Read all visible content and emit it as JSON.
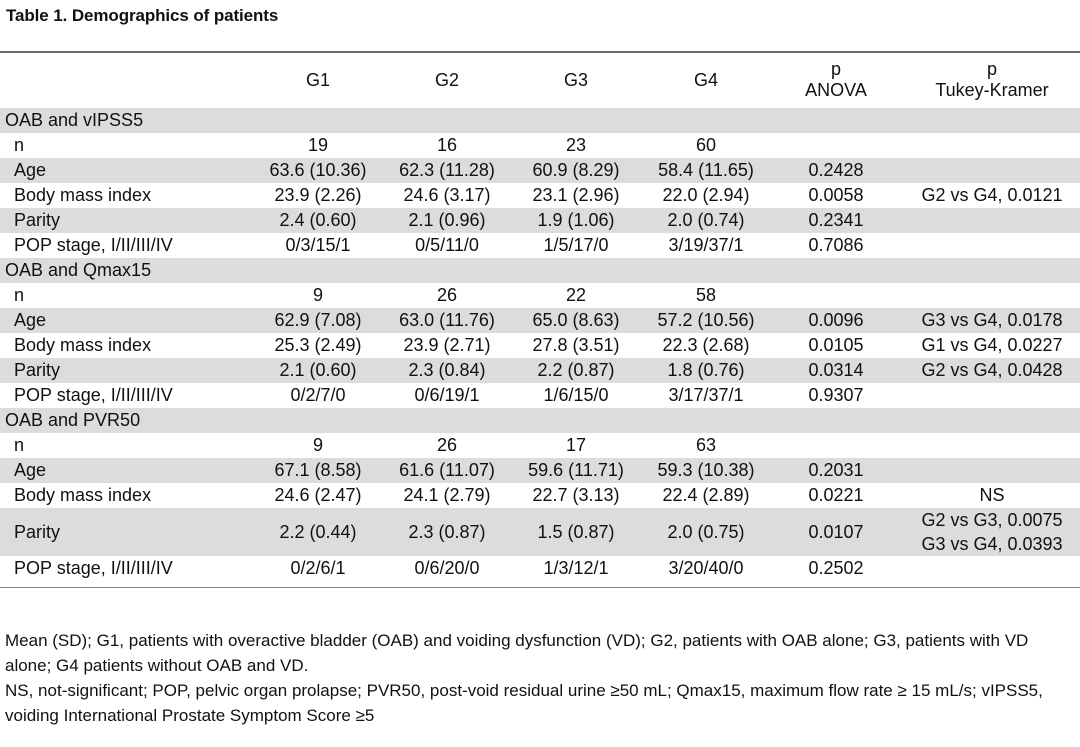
{
  "title": "Table 1. Demographics of patients",
  "header": {
    "g1": "G1",
    "g2": "G2",
    "g3": "G3",
    "g4": "G4",
    "p_line1": "p",
    "p_line2": "ANOVA",
    "tk_line1": "p",
    "tk_line2": "Tukey-Kramer"
  },
  "sections": [
    {
      "label": "OAB and vIPSS5",
      "rows": [
        {
          "label": "n",
          "g1": "19",
          "g2": "16",
          "g3": "23",
          "g4": "60",
          "p": "",
          "tk": ""
        },
        {
          "label": "Age",
          "g1": "63.6 (10.36)",
          "g2": "62.3 (11.28)",
          "g3": "60.9 (8.29)",
          "g4": "58.4 (11.65)",
          "p": "0.2428",
          "tk": ""
        },
        {
          "label": "Body mass index",
          "g1": "23.9 (2.26)",
          "g2": "24.6 (3.17)",
          "g3": "23.1 (2.96)",
          "g4": "22.0 (2.94)",
          "p": "0.0058",
          "tk": "G2 vs G4, 0.0121"
        },
        {
          "label": "Parity",
          "g1": "2.4 (0.60)",
          "g2": "2.1 (0.96)",
          "g3": "1.9 (1.06)",
          "g4": "2.0 (0.74)",
          "p": "0.2341",
          "tk": ""
        },
        {
          "label": "POP stage, I/II/III/IV",
          "g1": "0/3/15/1",
          "g2": "0/5/11/0",
          "g3": "1/5/17/0",
          "g4": "3/19/37/1",
          "p": "0.7086",
          "tk": ""
        }
      ]
    },
    {
      "label": "OAB and Qmax15",
      "rows": [
        {
          "label": "n",
          "g1": "9",
          "g2": "26",
          "g3": "22",
          "g4": "58",
          "p": "",
          "tk": ""
        },
        {
          "label": "Age",
          "g1": "62.9 (7.08)",
          "g2": "63.0 (11.76)",
          "g3": "65.0 (8.63)",
          "g4": "57.2 (10.56)",
          "p": "0.0096",
          "tk": "G3 vs G4, 0.0178"
        },
        {
          "label": "Body mass index",
          "g1": "25.3 (2.49)",
          "g2": "23.9 (2.71)",
          "g3": "27.8 (3.51)",
          "g4": "22.3 (2.68)",
          "p": "0.0105",
          "tk": "G1 vs G4, 0.0227"
        },
        {
          "label": "Parity",
          "g1": "2.1 (0.60)",
          "g2": "2.3 (0.84)",
          "g3": "2.2 (0.87)",
          "g4": "1.8 (0.76)",
          "p": "0.0314",
          "tk": "G2 vs G4, 0.0428"
        },
        {
          "label": "POP stage, I/II/III/IV",
          "g1": "0/2/7/0",
          "g2": "0/6/19/1",
          "g3": "1/6/15/0",
          "g4": "3/17/37/1",
          "p": "0.9307",
          "tk": ""
        }
      ]
    },
    {
      "label": "OAB and PVR50",
      "rows": [
        {
          "label": "n",
          "g1": "9",
          "g2": "26",
          "g3": "17",
          "g4": "63",
          "p": "",
          "tk": ""
        },
        {
          "label": "Age",
          "g1": "67.1 (8.58)",
          "g2": "61.6 (11.07)",
          "g3": "59.6 (11.71)",
          "g4": "59.3 (10.38)",
          "p": "0.2031",
          "tk": ""
        },
        {
          "label": "Body mass index",
          "g1": "24.6 (2.47)",
          "g2": "24.1 (2.79)",
          "g3": "22.7 (3.13)",
          "g4": "22.4 (2.89)",
          "p": "0.0221",
          "tk": "NS"
        },
        {
          "label": "Parity",
          "g1": "2.2 (0.44)",
          "g2": "2.3 (0.87)",
          "g3": "1.5 (0.87)",
          "g4": "2.0 (0.75)",
          "p": "0.0107",
          "tk": "G2 vs G3, 0.0075",
          "tk2": "G3 vs G4, 0.0393"
        },
        {
          "label": "POP stage, I/II/III/IV",
          "g1": "0/2/6/1",
          "g2": "0/6/20/0",
          "g3": "1/3/12/1",
          "g4": "3/20/40/0",
          "p": "0.2502",
          "tk": ""
        }
      ]
    }
  ],
  "notes": [
    "Mean (SD); G1, patients with overactive bladder (OAB) and voiding dysfunction (VD); G2, patients with OAB alone; G3, patients with VD alone; G4 patients without OAB and VD.",
    "NS, not-significant; POP, pelvic organ prolapse; PVR50, post-void residual urine ≥50 mL; Qmax15, maximum flow rate ≥ 15 mL/s; vIPSS5, voiding International Prostate Symptom Score ≥5"
  ]
}
